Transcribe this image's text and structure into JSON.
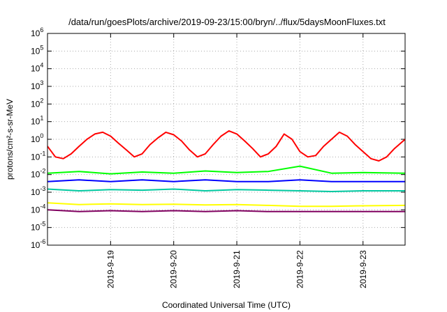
{
  "chart_data": {
    "type": "line",
    "title": "/data/run/goesPlots/archive/2019-09-23/15:00/bryn/../flux/5daysMoonFluxes.txt",
    "xlabel": "Coordinated Universal Time (UTC)",
    "ylabel": "protons/cm²-s-sr-MeV",
    "yscale": "log",
    "ylim": [
      1e-06,
      1000000.0
    ],
    "xlim": [
      "2019-09-18 00:00",
      "2019-09-23 16:00"
    ],
    "x_ticks": [
      "2019-9-19",
      "2019-9-20",
      "2019-9-21",
      "2019-9-22",
      "2019-9-23"
    ],
    "y_tick_exponents": [
      -6,
      -5,
      -4,
      -3,
      -2,
      -1,
      0,
      1,
      2,
      3,
      4,
      5,
      6
    ],
    "grid": true,
    "legend": "none",
    "series": [
      {
        "color": "#ff0000",
        "x": [
          "2019-09-18 00:00",
          "2019-09-18 03:00",
          "2019-09-18 06:00",
          "2019-09-18 09:00",
          "2019-09-18 12:00",
          "2019-09-18 15:00",
          "2019-09-18 18:00",
          "2019-09-18 21:00",
          "2019-09-19 00:00",
          "2019-09-19 03:00",
          "2019-09-19 06:00",
          "2019-09-19 09:00",
          "2019-09-19 12:00",
          "2019-09-19 15:00",
          "2019-09-19 18:00",
          "2019-09-19 21:00",
          "2019-09-20 00:00",
          "2019-09-20 03:00",
          "2019-09-20 06:00",
          "2019-09-20 09:00",
          "2019-09-20 12:00",
          "2019-09-20 15:00",
          "2019-09-20 18:00",
          "2019-09-20 21:00",
          "2019-09-21 00:00",
          "2019-09-21 03:00",
          "2019-09-21 06:00",
          "2019-09-21 09:00",
          "2019-09-21 12:00",
          "2019-09-21 15:00",
          "2019-09-21 18:00",
          "2019-09-21 21:00",
          "2019-09-22 00:00",
          "2019-09-22 03:00",
          "2019-09-22 06:00",
          "2019-09-22 09:00",
          "2019-09-22 12:00",
          "2019-09-22 15:00",
          "2019-09-22 18:00",
          "2019-09-22 21:00",
          "2019-09-23 00:00",
          "2019-09-23 03:00",
          "2019-09-23 06:00",
          "2019-09-23 09:00",
          "2019-09-23 12:00",
          "2019-09-23 16:00"
        ],
        "values": [
          0.4,
          0.1,
          0.08,
          0.15,
          0.4,
          1.0,
          2.0,
          2.5,
          1.5,
          0.6,
          0.25,
          0.1,
          0.15,
          0.5,
          1.2,
          2.5,
          1.8,
          0.8,
          0.25,
          0.1,
          0.15,
          0.5,
          1.5,
          3.0,
          2.0,
          0.8,
          0.3,
          0.1,
          0.15,
          0.4,
          2.0,
          1.0,
          0.2,
          0.1,
          0.12,
          0.4,
          1.0,
          2.5,
          1.5,
          0.5,
          0.2,
          0.08,
          0.06,
          0.1,
          0.3,
          1.0
        ]
      },
      {
        "color": "#00ff00",
        "x": [
          "2019-09-18 00:00",
          "2019-09-18 12:00",
          "2019-09-19 00:00",
          "2019-09-19 12:00",
          "2019-09-20 00:00",
          "2019-09-20 12:00",
          "2019-09-21 00:00",
          "2019-09-21 12:00",
          "2019-09-22 00:00",
          "2019-09-22 12:00",
          "2019-09-23 00:00",
          "2019-09-23 16:00"
        ],
        "values": [
          0.012,
          0.015,
          0.011,
          0.014,
          0.012,
          0.016,
          0.013,
          0.015,
          0.03,
          0.012,
          0.013,
          0.012
        ]
      },
      {
        "color": "#00c8a0",
        "x": [
          "2019-09-18 00:00",
          "2019-09-18 12:00",
          "2019-09-19 00:00",
          "2019-09-19 12:00",
          "2019-09-20 00:00",
          "2019-09-20 12:00",
          "2019-09-21 00:00",
          "2019-09-21 12:00",
          "2019-09-22 00:00",
          "2019-09-22 12:00",
          "2019-09-23 00:00",
          "2019-09-23 16:00"
        ],
        "values": [
          0.0015,
          0.0012,
          0.0014,
          0.0013,
          0.0015,
          0.0012,
          0.0014,
          0.0013,
          0.0012,
          0.0011,
          0.0012,
          0.0012
        ]
      },
      {
        "color": "#0000ff",
        "x": [
          "2019-09-18 00:00",
          "2019-09-18 12:00",
          "2019-09-19 00:00",
          "2019-09-19 12:00",
          "2019-09-20 00:00",
          "2019-09-20 12:00",
          "2019-09-21 00:00",
          "2019-09-21 12:00",
          "2019-09-22 00:00",
          "2019-09-22 12:00",
          "2019-09-23 00:00",
          "2019-09-23 16:00"
        ],
        "values": [
          0.004,
          0.005,
          0.004,
          0.005,
          0.004,
          0.005,
          0.004,
          0.004,
          0.005,
          0.004,
          0.004,
          0.004
        ]
      },
      {
        "color": "#ffff00",
        "x": [
          "2019-09-18 00:00",
          "2019-09-18 12:00",
          "2019-09-19 00:00",
          "2019-09-19 12:00",
          "2019-09-20 00:00",
          "2019-09-20 12:00",
          "2019-09-21 00:00",
          "2019-09-21 12:00",
          "2019-09-22 00:00",
          "2019-09-22 12:00",
          "2019-09-23 00:00",
          "2019-09-23 16:00"
        ],
        "values": [
          0.00025,
          0.0002,
          0.00022,
          0.0002,
          0.00021,
          0.00019,
          0.0002,
          0.00018,
          0.00016,
          0.00016,
          0.00017,
          0.00018
        ]
      },
      {
        "color": "#800060",
        "x": [
          "2019-09-18 00:00",
          "2019-09-18 12:00",
          "2019-09-19 00:00",
          "2019-09-19 12:00",
          "2019-09-20 00:00",
          "2019-09-20 12:00",
          "2019-09-21 00:00",
          "2019-09-21 12:00",
          "2019-09-22 00:00",
          "2019-09-22 12:00",
          "2019-09-23 00:00",
          "2019-09-23 16:00"
        ],
        "values": [
          0.0001,
          8e-05,
          9e-05,
          8e-05,
          9e-05,
          8e-05,
          9e-05,
          8e-05,
          8e-05,
          8e-05,
          8e-05,
          8e-05
        ]
      }
    ]
  }
}
